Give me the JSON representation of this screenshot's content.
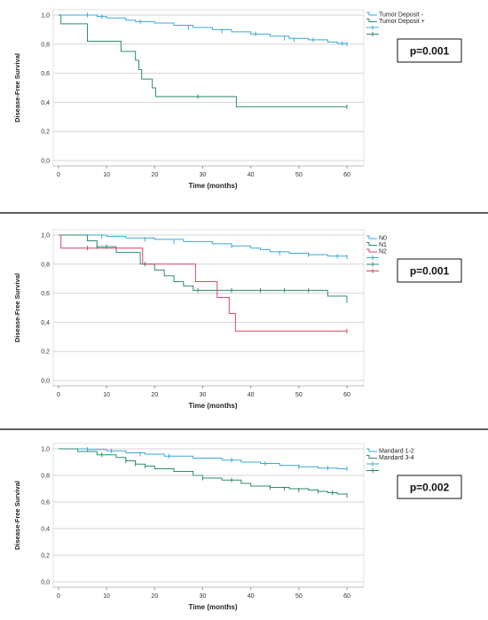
{
  "chart_data": [
    {
      "type": "line",
      "ylabel": "Disease-Free Survival",
      "xlabel": "Time (months)",
      "xlim": [
        0,
        60
      ],
      "ylim": [
        0,
        1
      ],
      "xticks": [
        "0",
        "10",
        "20",
        "30",
        "40",
        "50",
        "60"
      ],
      "yticks": [
        "0,0",
        "0,2",
        "0,4",
        "0,6",
        "0,8",
        "1,0"
      ],
      "grid": "horizontal",
      "legend_position": "top-right",
      "annotation": "p=0.001",
      "series": [
        {
          "name": "Tumor Deposit -",
          "color": "#3aa8d8",
          "points": [
            [
              0,
              1.0
            ],
            [
              8,
              0.99
            ],
            [
              10,
              0.98
            ],
            [
              14,
              0.965
            ],
            [
              16,
              0.955
            ],
            [
              20,
              0.945
            ],
            [
              24,
              0.93
            ],
            [
              28,
              0.915
            ],
            [
              32,
              0.9
            ],
            [
              36,
              0.885
            ],
            [
              40,
              0.87
            ],
            [
              44,
              0.855
            ],
            [
              48,
              0.84
            ],
            [
              52,
              0.83
            ],
            [
              56,
              0.815
            ],
            [
              58,
              0.805
            ],
            [
              60,
              0.8
            ]
          ],
          "censored": [
            [
              6,
              1.0
            ],
            [
              9,
              0.99
            ],
            [
              17,
              0.955
            ],
            [
              27,
              0.915
            ],
            [
              34,
              0.89
            ],
            [
              41,
              0.87
            ],
            [
              47,
              0.84
            ],
            [
              49,
              0.83
            ],
            [
              53,
              0.83
            ],
            [
              59,
              0.805
            ],
            [
              60,
              0.8
            ]
          ]
        },
        {
          "name": "Tumor Deposit +",
          "color": "#2e8b72",
          "points": [
            [
              0,
              1.0
            ],
            [
              0.5,
              0.94
            ],
            [
              6,
              0.82
            ],
            [
              13,
              0.75
            ],
            [
              16,
              0.69
            ],
            [
              16.7,
              0.625
            ],
            [
              17.3,
              0.56
            ],
            [
              19.5,
              0.5
            ],
            [
              20.2,
              0.44
            ],
            [
              37,
              0.37
            ],
            [
              60,
              0.37
            ]
          ],
          "censored": [
            [
              29,
              0.44
            ],
            [
              60,
              0.37
            ]
          ]
        }
      ]
    },
    {
      "type": "line",
      "ylabel": "Disease-Free Survival",
      "xlabel": "Time (months)",
      "xlim": [
        0,
        60
      ],
      "ylim": [
        0,
        1
      ],
      "xticks": [
        "0",
        "10",
        "20",
        "30",
        "40",
        "50",
        "60"
      ],
      "yticks": [
        "0,0",
        "0,2",
        "0,4",
        "0,6",
        "0,8",
        "1,0"
      ],
      "grid": "horizontal",
      "legend_position": "top-right",
      "annotation": "p=0.001",
      "series": [
        {
          "name": "N0",
          "color": "#3aa8d8",
          "points": [
            [
              0,
              1.0
            ],
            [
              10,
              0.99
            ],
            [
              14,
              0.98
            ],
            [
              20,
              0.97
            ],
            [
              26,
              0.955
            ],
            [
              32,
              0.94
            ],
            [
              36,
              0.925
            ],
            [
              40,
              0.91
            ],
            [
              42,
              0.9
            ],
            [
              44,
              0.885
            ],
            [
              48,
              0.875
            ],
            [
              52,
              0.865
            ],
            [
              56,
              0.855
            ],
            [
              60,
              0.85
            ]
          ],
          "censored": [
            [
              9,
              0.99
            ],
            [
              18,
              0.97
            ],
            [
              24,
              0.955
            ],
            [
              36,
              0.925
            ],
            [
              46,
              0.875
            ],
            [
              52,
              0.865
            ],
            [
              58,
              0.855
            ],
            [
              60,
              0.85
            ]
          ]
        },
        {
          "name": "N1",
          "color": "#2e8b72",
          "points": [
            [
              0,
              1.0
            ],
            [
              6,
              0.96
            ],
            [
              8,
              0.92
            ],
            [
              12,
              0.88
            ],
            [
              17,
              0.8
            ],
            [
              20,
              0.76
            ],
            [
              22,
              0.72
            ],
            [
              24,
              0.68
            ],
            [
              26,
              0.65
            ],
            [
              28,
              0.62
            ],
            [
              55,
              0.62
            ],
            [
              56,
              0.58
            ],
            [
              59,
              0.58
            ],
            [
              60,
              0.55
            ]
          ],
          "censored": [
            [
              8,
              0.92
            ],
            [
              10,
              0.92
            ],
            [
              18,
              0.8
            ],
            [
              29,
              0.62
            ],
            [
              36,
              0.62
            ],
            [
              42,
              0.62
            ],
            [
              47,
              0.62
            ],
            [
              52,
              0.62
            ],
            [
              60,
              0.55
            ]
          ]
        },
        {
          "name": "N2",
          "color": "#d9475f",
          "points": [
            [
              0,
              1.0
            ],
            [
              0.5,
              0.91
            ],
            [
              17.5,
              0.8
            ],
            [
              28.5,
              0.68
            ],
            [
              33,
              0.57
            ],
            [
              35.5,
              0.46
            ],
            [
              36.8,
              0.34
            ],
            [
              60,
              0.34
            ]
          ],
          "censored": [
            [
              6,
              0.91
            ],
            [
              60,
              0.34
            ]
          ]
        }
      ]
    },
    {
      "type": "line",
      "ylabel": "Disease-Free Survival",
      "xlabel": "Time (months)",
      "xlim": [
        0,
        60
      ],
      "ylim": [
        0,
        1
      ],
      "xticks": [
        "0",
        "10",
        "20",
        "30",
        "40",
        "50",
        "60"
      ],
      "yticks": [
        "0,0",
        "0,2",
        "0,4",
        "0,6",
        "0,8",
        "1,0"
      ],
      "grid": "horizontal",
      "legend_position": "top-right",
      "annotation": "p=0.002",
      "series": [
        {
          "name": "Mandard 1-2",
          "color": "#3aa8d8",
          "points": [
            [
              0,
              1.0
            ],
            [
              6,
              0.995
            ],
            [
              10,
              0.985
            ],
            [
              14,
              0.97
            ],
            [
              18,
              0.96
            ],
            [
              22,
              0.945
            ],
            [
              28,
              0.93
            ],
            [
              34,
              0.915
            ],
            [
              38,
              0.9
            ],
            [
              42,
              0.89
            ],
            [
              46,
              0.875
            ],
            [
              50,
              0.865
            ],
            [
              54,
              0.855
            ],
            [
              58,
              0.85
            ],
            [
              60,
              0.85
            ]
          ],
          "censored": [
            [
              6,
              0.995
            ],
            [
              11,
              0.985
            ],
            [
              17,
              0.96
            ],
            [
              23,
              0.945
            ],
            [
              36,
              0.915
            ],
            [
              43,
              0.89
            ],
            [
              50,
              0.865
            ],
            [
              56,
              0.855
            ],
            [
              60,
              0.85
            ]
          ]
        },
        {
          "name": "Mandard 3-4",
          "color": "#2e8b72",
          "points": [
            [
              0,
              1.0
            ],
            [
              4,
              0.98
            ],
            [
              8,
              0.955
            ],
            [
              12,
              0.935
            ],
            [
              14,
              0.91
            ],
            [
              16,
              0.885
            ],
            [
              18,
              0.87
            ],
            [
              20,
              0.85
            ],
            [
              24,
              0.83
            ],
            [
              28,
              0.8
            ],
            [
              30,
              0.78
            ],
            [
              34,
              0.765
            ],
            [
              38,
              0.74
            ],
            [
              40,
              0.72
            ],
            [
              44,
              0.71
            ],
            [
              48,
              0.7
            ],
            [
              52,
              0.69
            ],
            [
              54,
              0.68
            ],
            [
              56,
              0.67
            ],
            [
              58,
              0.66
            ],
            [
              60,
              0.65
            ]
          ],
          "censored": [
            [
              9,
              0.955
            ],
            [
              14,
              0.91
            ],
            [
              16,
              0.885
            ],
            [
              18,
              0.87
            ],
            [
              30,
              0.78
            ],
            [
              36,
              0.765
            ],
            [
              44,
              0.71
            ],
            [
              47,
              0.7
            ],
            [
              50,
              0.69
            ],
            [
              54,
              0.68
            ],
            [
              57,
              0.67
            ],
            [
              60,
              0.65
            ]
          ]
        }
      ]
    }
  ]
}
